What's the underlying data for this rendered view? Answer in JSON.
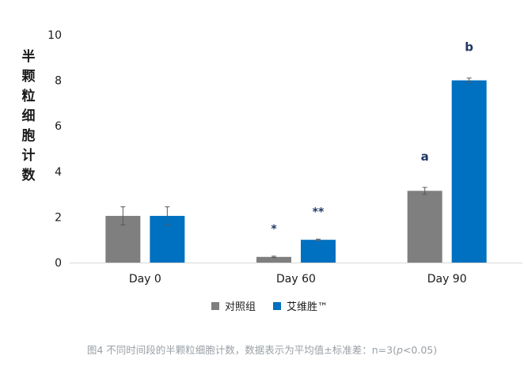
{
  "chart_data": {
    "type": "bar",
    "ylabel": "半颗粒细胞计数",
    "ylim": [
      0,
      10
    ],
    "yticks": [
      0,
      2,
      4,
      6,
      8,
      10
    ],
    "categories": [
      "Day 0",
      "Day 60",
      "Day 90"
    ],
    "series": [
      {
        "name": "对照组",
        "color": "#7f7f7f",
        "values": [
          2.05,
          0.25,
          3.15
        ],
        "errors": [
          0.4,
          0.03,
          0.15
        ],
        "annotations": [
          "",
          "*",
          "a"
        ]
      },
      {
        "name": "艾维胜™",
        "color": "#0070c0",
        "values": [
          2.05,
          1.0,
          8.0
        ],
        "errors": [
          0.4,
          0.03,
          0.1
        ],
        "annotations": [
          "",
          "**",
          "b"
        ]
      }
    ],
    "legend": "bottom-center",
    "annotation_color": "#1f3864",
    "axis_color": "#d9d9d9"
  },
  "caption": {
    "prefix": "图4 不同时间段的半颗粒细胞计数，数据表示为平均值±标准差：n=3(",
    "italic": "p",
    "suffix": "<0.05)"
  }
}
